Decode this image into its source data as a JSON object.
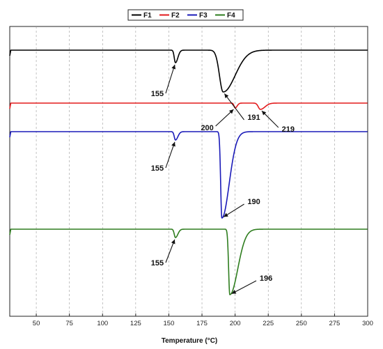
{
  "chart_data": {
    "type": "line",
    "title": "",
    "xlabel": "Temperature (°C)",
    "ylabel": "",
    "xlim": [
      30,
      300
    ],
    "xticks": [
      50,
      75,
      100,
      125,
      150,
      175,
      200,
      225,
      250,
      275,
      300
    ],
    "grid": "vertical-dashed",
    "legend": "top-center",
    "series": [
      {
        "name": "F1",
        "color": "#000000",
        "baseline": 72,
        "peaks": [
          {
            "x": 155,
            "depth": 18,
            "lw": 0.9,
            "rw": 1.8
          },
          {
            "x": 191,
            "depth": 60,
            "lw": 2.8,
            "rw": 9
          }
        ]
      },
      {
        "name": "F2",
        "color": "#e31a1c",
        "baseline": 148,
        "peaks": [
          {
            "x": 200,
            "depth": 7,
            "lw": 0.8,
            "rw": 1.5
          },
          {
            "x": 219,
            "depth": 9,
            "lw": 1.5,
            "rw": 3.5
          }
        ]
      },
      {
        "name": "F3",
        "color": "#1a1ab8",
        "baseline": 189,
        "peaks": [
          {
            "x": 155,
            "depth": 12,
            "lw": 0.9,
            "rw": 1.8
          },
          {
            "x": 190,
            "depth": 124,
            "lw": 0.9,
            "rw": 5.5
          }
        ]
      },
      {
        "name": "F4",
        "color": "#2e7d1e",
        "baseline": 329,
        "peaks": [
          {
            "x": 155,
            "depth": 12,
            "lw": 0.9,
            "rw": 1.8
          },
          {
            "x": 196,
            "depth": 94,
            "lw": 0.9,
            "rw": 6
          }
        ]
      }
    ],
    "annotations": [
      {
        "text": "155",
        "series": "F1",
        "x": 155
      },
      {
        "text": "191",
        "series": "F1",
        "x": 191
      },
      {
        "text": "200",
        "series": "F2",
        "x": 200
      },
      {
        "text": "219",
        "series": "F2",
        "x": 219
      },
      {
        "text": "155",
        "series": "F3",
        "x": 155
      },
      {
        "text": "190",
        "series": "F3",
        "x": 190
      },
      {
        "text": "155",
        "series": "F4",
        "x": 155
      },
      {
        "text": "196",
        "series": "F4",
        "x": 196
      }
    ]
  }
}
